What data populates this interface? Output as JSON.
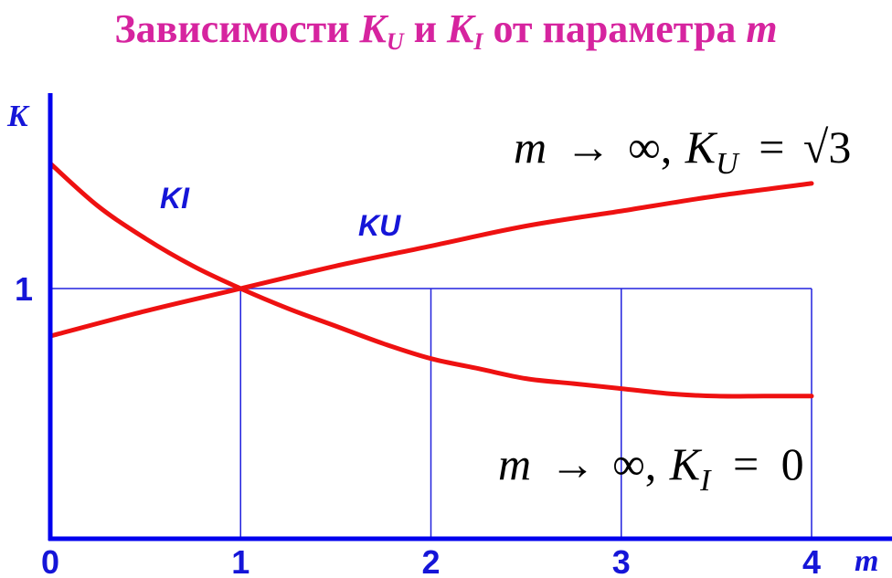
{
  "title": {
    "prefix": "Зависимости ",
    "k1": "K",
    "k1_sub": "U",
    "mid": " и ",
    "k2": "K",
    "k2_sub": "I",
    "suffix": " от параметра ",
    "param": "m"
  },
  "chart_data": {
    "type": "line",
    "xlabel": "m",
    "ylabel": "K",
    "xlim": [
      0,
      4
    ],
    "ylim": [
      0,
      1.75
    ],
    "x_ticks": [
      "0",
      "1",
      "2",
      "3",
      "4"
    ],
    "y_ticks": [
      "1"
    ],
    "grid": true,
    "series": [
      {
        "name": "KI",
        "color": "#ee1111",
        "x": [
          0,
          0.25,
          0.5,
          0.75,
          1,
          1.25,
          1.5,
          1.75,
          2,
          2.25,
          2.5,
          2.75,
          3,
          3.25,
          3.5,
          3.75,
          4
        ],
        "y": [
          1.5,
          1.33,
          1.2,
          1.09,
          1.0,
          0.92,
          0.85,
          0.78,
          0.72,
          0.68,
          0.64,
          0.62,
          0.6,
          0.58,
          0.57,
          0.57,
          0.57
        ]
      },
      {
        "name": "KU",
        "color": "#ee1111",
        "x": [
          0,
          0.5,
          1,
          1.5,
          2,
          2.5,
          3,
          3.5,
          4
        ],
        "y": [
          0.81,
          0.91,
          1.0,
          1.09,
          1.17,
          1.25,
          1.31,
          1.37,
          1.42
        ]
      }
    ],
    "annotations": {
      "ku_limit": {
        "m": "m",
        "arrow": "→",
        "inf": "∞,",
        "K": "K",
        "sub": "U",
        "eq": "=",
        "sqrt": "√",
        "val": "3"
      },
      "ki_limit": {
        "m": "m",
        "arrow": "→",
        "inf": "∞,",
        "K": "K",
        "sub": "I",
        "eq": "=",
        "val": "0"
      }
    }
  }
}
